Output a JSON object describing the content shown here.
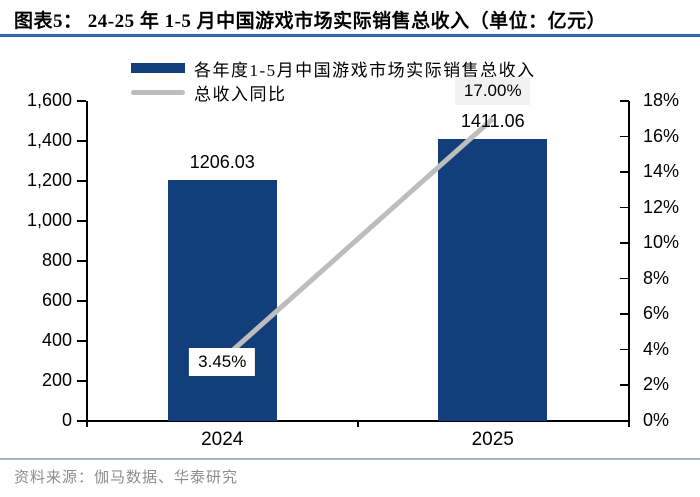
{
  "title": "图表5： 24-25 年 1-5 月中国游戏市场实际销售总收入（单位：亿元）",
  "legend": {
    "items": [
      {
        "label": "各年度1-5月中国游戏市场实际销售总收入",
        "swatch": "bar",
        "color": "#123E7C"
      },
      {
        "label": "总收入同比",
        "swatch": "line",
        "color": "#BDBDBD"
      }
    ]
  },
  "chart_data": {
    "type": "bar",
    "subtype": "bar-with-line-secondary-axis",
    "categories": [
      "2024",
      "2025"
    ],
    "series": [
      {
        "name": "各年度1-5月中国游戏市场实际销售总收入",
        "type": "bar",
        "axis": "left",
        "values": [
          1206.03,
          1411.06
        ],
        "data_labels": [
          "1206.03",
          "1411.06"
        ],
        "color": "#123E7C"
      },
      {
        "name": "总收入同比",
        "type": "line",
        "axis": "right",
        "values": [
          3.45,
          17.0
        ],
        "data_labels": [
          "3.45%",
          "17.00%"
        ],
        "color": "#BDBDBD"
      }
    ],
    "left_axis": {
      "min": 0,
      "max": 1600,
      "step": 200,
      "tick_labels": [
        "0",
        "200",
        "400",
        "600",
        "800",
        "1,000",
        "1,200",
        "1,400",
        "1,600"
      ]
    },
    "right_axis": {
      "min": 0,
      "max": 18,
      "step": 2,
      "tick_labels": [
        "0%",
        "2%",
        "4%",
        "6%",
        "8%",
        "10%",
        "12%",
        "14%",
        "16%",
        "18%"
      ]
    },
    "grid": false,
    "legend_position": "top"
  },
  "footer": {
    "source": "资料来源：伽马数据、华泰研究"
  },
  "colors": {
    "bar": "#123E7C",
    "line": "#BDBDBD",
    "title_rule": "#3566AE",
    "footer_rule": "#9FB6CB",
    "source_text": "#8C8C8C",
    "line_label_bg": "#F2F2F2",
    "axis": "#000000"
  }
}
